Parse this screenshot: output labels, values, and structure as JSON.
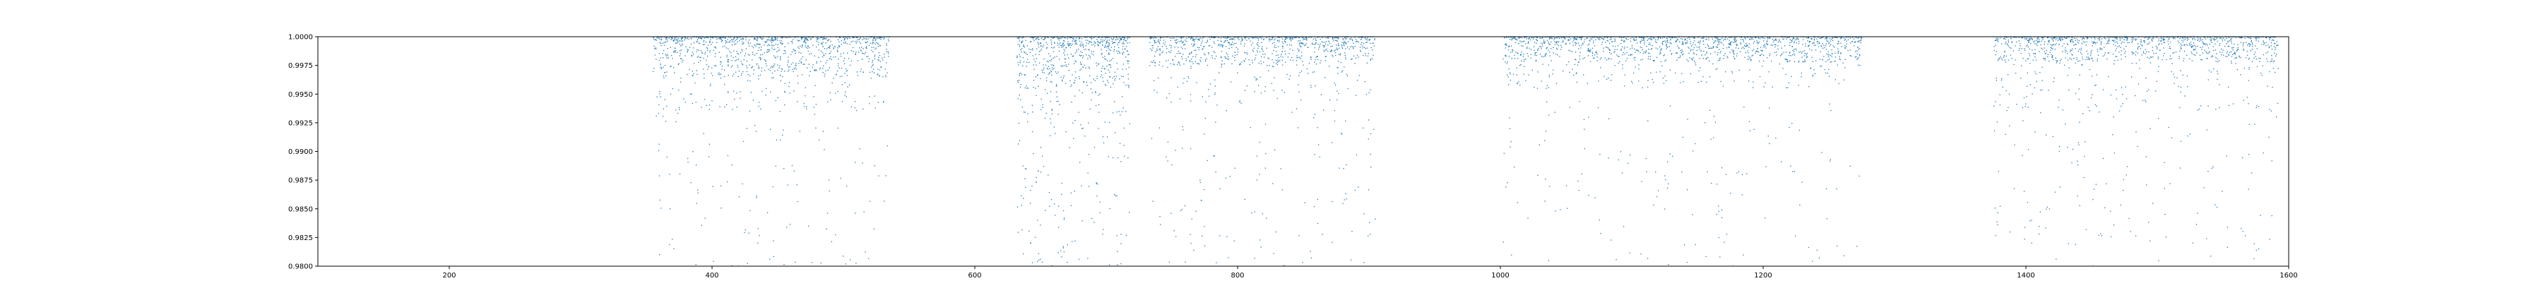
{
  "chart_data": {
    "type": "scatter",
    "title": "",
    "xlabel": "",
    "ylabel": "",
    "xlim": [
      100,
      1600
    ],
    "ylim": [
      0.98,
      1.0
    ],
    "grid": false,
    "legend": "none",
    "x_ticks": [
      200,
      400,
      600,
      800,
      1000,
      1200,
      1400,
      1600
    ],
    "y_ticks": [
      0.98,
      0.9825,
      0.985,
      0.9875,
      0.99,
      0.9925,
      0.995,
      0.9975,
      1.0
    ],
    "x_tick_labels": [
      "200",
      "400",
      "600",
      "800",
      "1000",
      "1200",
      "1400",
      "1600"
    ],
    "y_tick_labels": [
      "0.9800",
      "0.9825",
      "0.9850",
      "0.9875",
      "0.9900",
      "0.9925",
      "0.9950",
      "0.9975",
      "1.0000"
    ],
    "marker_color": "#1f77b4",
    "series": [
      {
        "clusters": [
          {
            "x_range": [
              355,
              535
            ],
            "min_y": 0.9935,
            "dense_from": 0.9965,
            "count": 1100
          },
          {
            "x_range": [
              632,
              718
            ],
            "min_y": 0.9932,
            "dense_from": 0.9955,
            "count": 650
          },
          {
            "x_range": [
              733,
              905
            ],
            "min_y": 0.9942,
            "dense_from": 0.9975,
            "count": 900
          },
          {
            "x_range": [
              1002,
              1275
            ],
            "min_y": 0.9955,
            "dense_from": 0.9978,
            "count": 1400
          },
          {
            "x_range": [
              1375,
              1592
            ],
            "min_y": 0.9935,
            "dense_from": 0.9978,
            "count": 1100
          }
        ],
        "scattered_points": {
          "y_range": [
            0.98,
            0.9945
          ],
          "count": 700
        }
      }
    ]
  }
}
